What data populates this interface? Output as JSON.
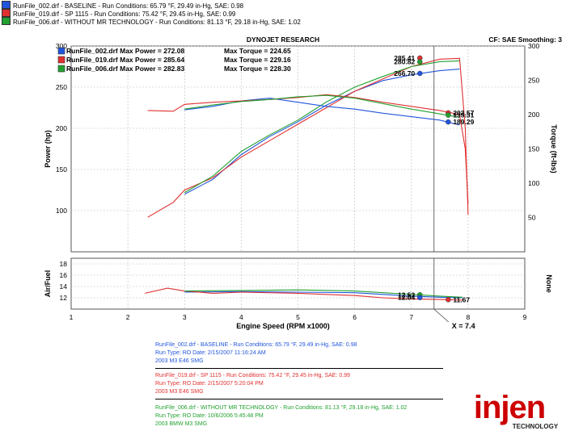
{
  "header_runs": [
    {
      "text": "RunFile_002.drf - BASELINE - Run Conditions: 65.79 °F, 29.49 in-Hg, SAE: 0.98",
      "color": "#2255dd"
    },
    {
      "text": "RunFile_019.drf - SP 1115 - Run Conditions: 75.42 °F, 29.45 in-Hg, SAE: 0.99",
      "color": "#e03030"
    },
    {
      "text": "RunFile_006.drf - WITHOUT MR TECHNOLOGY - Run Conditions: 81.13 °F, 29.18 in-Hg, SAE: 1.02",
      "color": "#22a030"
    }
  ],
  "chart_title": "DYNOJET RESEARCH",
  "cf_label": "CF: SAE  Smoothing: 3",
  "cursor_label": "X = 7.4",
  "run_info": [
    {
      "color": "#2255dd",
      "lines": [
        "RunFile_002.drf - BASELINE - Run Conditions: 65.79 °F, 29.49 in-Hg, SAE: 0.98",
        "Run Type: RO  Date: 2/15/2007 11:16:24 AM",
        "2003 M3 E46 SMG"
      ]
    },
    {
      "color": "#e03030",
      "lines": [
        "RunFile_019.drf - SP 1115 - Run Conditions: 75.42 °F, 29.45 in-Hg, SAE: 0.99",
        "Run Type: RO  Date: 2/15/2007 5:20:04 PM",
        "2003 M3 E46 SMG"
      ]
    },
    {
      "color": "#22a030",
      "lines": [
        "RunFile_006.drf - WITHOUT MR TECHNOLOGY - Run Conditions: 81.13 °F, 29.18 in-Hg, SAE: 1.02",
        "Run Type: RO  Date: 10/6/2006 5:45:48 PM",
        "2003 BMW M3 SMG"
      ]
    }
  ],
  "logo": {
    "text": "injen",
    "subtext": "TECHNOLOGY",
    "color": "#cc0000"
  },
  "chart_data": [
    {
      "type": "line",
      "title": "DYNOJET RESEARCH",
      "xlabel": "Engine Speed (RPM x1000)",
      "ylabel": "Power (hp)",
      "y2label": "Torque (ft-lbs)",
      "xlim": [
        1,
        9
      ],
      "ylim": [
        50,
        300
      ],
      "y2lim": [
        0,
        300
      ],
      "x_ticks": [
        1,
        2,
        3,
        4,
        5,
        6,
        7,
        8,
        9
      ],
      "y_ticks": [
        100,
        150,
        200,
        250,
        300
      ],
      "y2_ticks": [
        50,
        100,
        150,
        200,
        250,
        300
      ],
      "grid": true,
      "cursor_x": 7.4,
      "legend": [
        {
          "text": "RunFile_002.drf Max Power = 272.08",
          "torque": "Max Torque = 224.65",
          "color": "#2255dd"
        },
        {
          "text": "RunFile_019.drf Max Power = 285.64",
          "torque": "Max Torque = 229.16",
          "color": "#e03030"
        },
        {
          "text": "RunFile_006.drf Max Power = 282.83",
          "torque": "Max Torque = 228.30",
          "color": "#22a030"
        }
      ],
      "series": [
        {
          "measure": "power",
          "color": "#2255dd",
          "x": [
            3.0,
            3.5,
            4.0,
            4.5,
            5.0,
            5.5,
            6.0,
            6.5,
            7.0,
            7.5,
            7.85
          ],
          "y": [
            120,
            138,
            168,
            190,
            208,
            228,
            245,
            258,
            265,
            270,
            272
          ]
        },
        {
          "measure": "power",
          "color": "#e03030",
          "x": [
            2.35,
            2.8,
            3.0,
            3.5,
            4.0,
            4.5,
            5.0,
            5.5,
            6.0,
            6.5,
            7.0,
            7.5,
            7.85,
            7.95,
            8.0
          ],
          "y": [
            92,
            110,
            125,
            140,
            165,
            185,
            205,
            225,
            245,
            260,
            275,
            284,
            285,
            200,
            95
          ]
        },
        {
          "measure": "power",
          "color": "#22a030",
          "x": [
            3.0,
            3.5,
            4.0,
            4.5,
            5.0,
            5.5,
            6.0,
            6.5,
            7.0,
            7.5,
            7.85
          ],
          "y": [
            122,
            142,
            172,
            192,
            210,
            232,
            250,
            263,
            275,
            281,
            282
          ]
        },
        {
          "measure": "torque",
          "color": "#2255dd",
          "x": [
            3.0,
            3.5,
            4.0,
            4.5,
            5.0,
            5.5,
            6.0,
            6.5,
            7.0,
            7.5,
            7.85
          ],
          "y": [
            207,
            212,
            220,
            224,
            218,
            212,
            208,
            202,
            197,
            192,
            185
          ]
        },
        {
          "measure": "torque",
          "color": "#e03030",
          "x": [
            2.35,
            2.8,
            3.0,
            3.5,
            4.0,
            4.5,
            5.0,
            5.5,
            6.0,
            6.5,
            7.0,
            7.5,
            7.85,
            7.95,
            8.0
          ],
          "y": [
            206,
            205,
            215,
            218,
            220,
            222,
            225,
            229,
            225,
            218,
            212,
            206,
            200,
            150,
            70
          ]
        },
        {
          "measure": "torque",
          "color": "#22a030",
          "x": [
            3.0,
            3.5,
            4.0,
            4.5,
            5.0,
            5.5,
            6.0,
            6.5,
            7.0,
            7.5,
            7.85
          ],
          "y": [
            208,
            214,
            219,
            222,
            226,
            228,
            224,
            216,
            208,
            201,
            196
          ]
        }
      ],
      "markers": [
        {
          "x": 7.15,
          "y": 285.41,
          "label": "285.41",
          "color": "#e03030",
          "label_side": "left"
        },
        {
          "x": 7.15,
          "y": 280.82,
          "label": "280.82",
          "color": "#22a030",
          "label_side": "left"
        },
        {
          "x": 7.15,
          "y": 266.7,
          "label": "266.70",
          "color": "#2255dd",
          "label_side": "left"
        },
        {
          "x": 7.65,
          "y": 202.57,
          "label": "202.57",
          "color": "#e03030",
          "label_side": "right",
          "axis": "torque"
        },
        {
          "x": 7.65,
          "y": 199.31,
          "label": "199.31",
          "color": "#22a030",
          "label_side": "right",
          "axis": "torque"
        },
        {
          "x": 7.65,
          "y": 189.29,
          "label": "189.29",
          "color": "#2255dd",
          "label_side": "right",
          "axis": "torque"
        }
      ]
    },
    {
      "type": "line",
      "ylabel": "Air/Fuel",
      "y2label": "None",
      "xlim": [
        1,
        9
      ],
      "ylim": [
        10,
        19
      ],
      "y_ticks": [
        12,
        14,
        16,
        18
      ],
      "grid": true,
      "cursor_x": 7.4,
      "series": [
        {
          "color": "#2255dd",
          "x": [
            3.0,
            4.0,
            5.0,
            6.0,
            6.5,
            7.0,
            7.5,
            7.9
          ],
          "y": [
            13.0,
            13.1,
            13.0,
            12.9,
            12.6,
            12.3,
            12.1,
            12.0
          ]
        },
        {
          "color": "#e03030",
          "x": [
            2.3,
            2.7,
            3.0,
            3.5,
            4.0,
            5.0,
            6.0,
            6.5,
            7.0,
            7.5,
            7.9
          ],
          "y": [
            12.8,
            13.7,
            13.2,
            12.8,
            13.0,
            12.8,
            12.4,
            12.0,
            11.8,
            11.7,
            11.6
          ]
        },
        {
          "color": "#22a030",
          "x": [
            3.0,
            4.0,
            5.0,
            6.0,
            6.5,
            7.0,
            7.5,
            7.9
          ],
          "y": [
            13.2,
            13.3,
            13.4,
            13.2,
            12.9,
            12.6,
            12.3,
            12.1
          ]
        }
      ],
      "markers": [
        {
          "x": 7.15,
          "y": 12.53,
          "label": "12.53",
          "color": "#22a030",
          "label_side": "left"
        },
        {
          "x": 7.15,
          "y": 12.04,
          "label": "12.04",
          "color": "#2255dd",
          "label_side": "left"
        },
        {
          "x": 7.65,
          "y": 11.67,
          "label": "11.67",
          "color": "#e03030",
          "label_side": "right"
        }
      ]
    }
  ]
}
